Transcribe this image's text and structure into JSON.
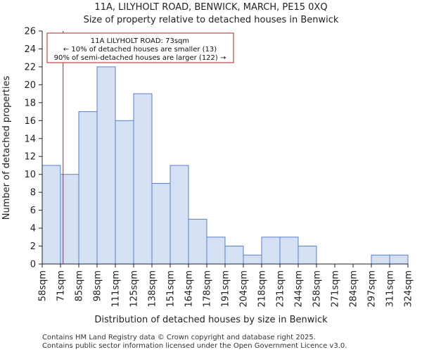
{
  "chart_data": {
    "type": "bar",
    "title": [
      "11A, LILYHOLT ROAD, BENWICK, MARCH, PE15 0XQ",
      "Size of property relative to detached houses in Benwick"
    ],
    "xlabel": "Distribution of detached houses by size in Benwick",
    "ylabel": "Number of detached properties",
    "bin_edges": [
      58,
      71,
      85,
      98,
      111,
      125,
      138,
      151,
      164,
      178,
      191,
      204,
      218,
      231,
      244,
      258,
      271,
      284,
      297,
      311,
      324
    ],
    "x_tick_labels": [
      "58sqm",
      "71sqm",
      "85sqm",
      "98sqm",
      "111sqm",
      "125sqm",
      "138sqm",
      "151sqm",
      "164sqm",
      "178sqm",
      "191sqm",
      "204sqm",
      "218sqm",
      "231sqm",
      "244sqm",
      "258sqm",
      "271sqm",
      "284sqm",
      "297sqm",
      "311sqm",
      "324sqm"
    ],
    "values": [
      11,
      10,
      17,
      22,
      16,
      19,
      9,
      11,
      5,
      3,
      2,
      1,
      3,
      3,
      2,
      0,
      0,
      0,
      1,
      1
    ],
    "ylim": [
      0,
      26
    ],
    "y_ticks": [
      0,
      2,
      4,
      6,
      8,
      10,
      12,
      14,
      16,
      18,
      20,
      22,
      24,
      26
    ],
    "grid": false,
    "bar_color": "#d6e0f5",
    "bar_edge_color": "#5b7fc7",
    "marker": {
      "value": 73,
      "color": "#b22222"
    },
    "annotation": {
      "lines": [
        "11A LILYHOLT ROAD: 73sqm",
        "← 10% of detached houses are smaller (13)",
        "90% of semi-detached houses are larger (122) →"
      ],
      "border_color": "#b22222"
    }
  },
  "footer": {
    "line1": "Contains HM Land Registry data © Crown copyright and database right 2025.",
    "line2": "Contains public sector information licensed under the Open Government Licence v3.0."
  }
}
